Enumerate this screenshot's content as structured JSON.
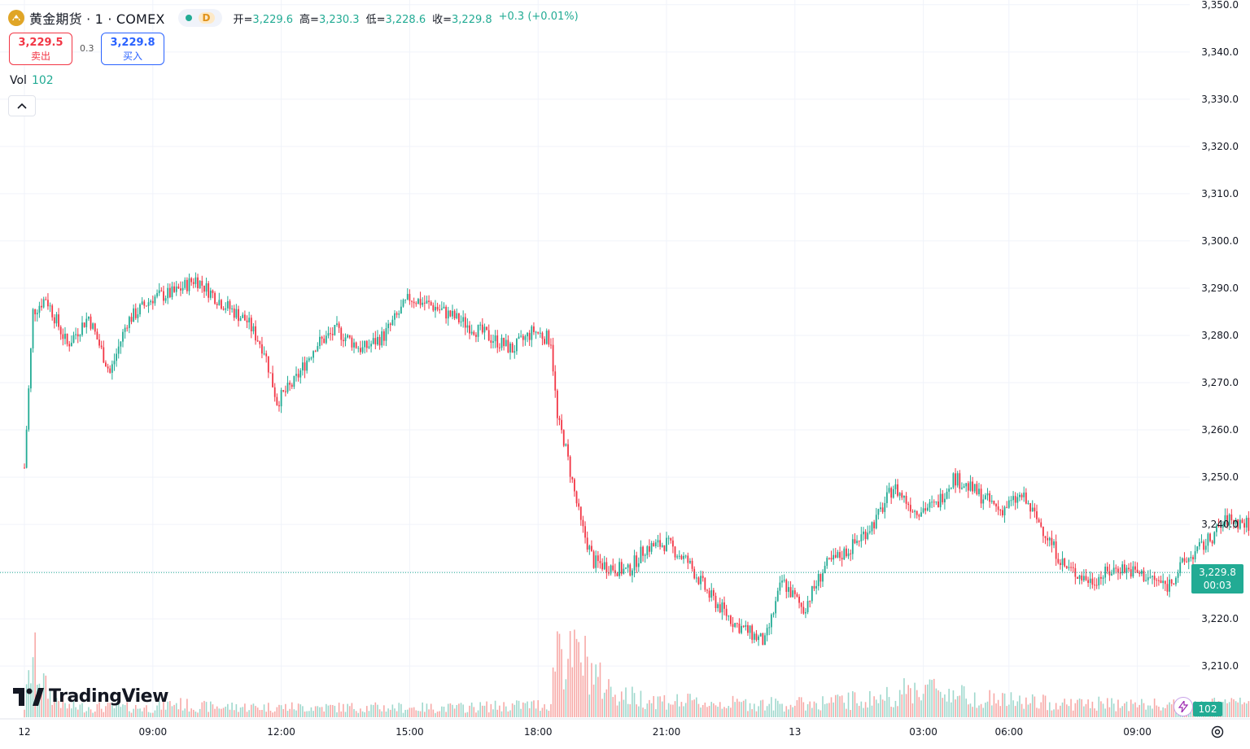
{
  "header": {
    "title": "黄金期货 · 1 · COMEX",
    "interval_badge": "D",
    "ohlc": {
      "open_label": "开=",
      "open": "3,229.6",
      "high_label": "高=",
      "high": "3,230.3",
      "low_label": "低=",
      "low": "3,228.6",
      "close_label": "收=",
      "close": "3,229.8",
      "change": "+0.3 (+0.01%)"
    }
  },
  "trade": {
    "sell_price": "3,229.5",
    "sell_label": "卖出",
    "spread": "0.3",
    "buy_price": "3,229.8",
    "buy_label": "买入"
  },
  "volume_legend": {
    "label": "Vol",
    "value": "102"
  },
  "last_price": {
    "price": "3,229.8",
    "countdown": "00:03"
  },
  "volume_label": "102",
  "logo_text": "TradingView",
  "colors": {
    "up": "#22ab94",
    "down": "#f23645",
    "up_vol": "#9fd8cd",
    "down_vol": "#f7a9a7",
    "grid": "#f0f3fa",
    "accent": "#2962ff"
  },
  "icons": [
    "gold-coin-icon",
    "chevron-up-icon",
    "bolt-icon",
    "gear-icon",
    "tradingview-logo-icon"
  ],
  "chart_data": {
    "type": "candlestick",
    "y_axis_ticks": [
      "3,210.0",
      "3,220.0",
      "3,230.0",
      "3,240.0",
      "3,250.0",
      "3,260.0",
      "3,270.0",
      "3,280.0",
      "3,290.0",
      "3,300.0",
      "3,310.0",
      "3,320.0",
      "3,330.0",
      "3,340.0",
      "3,350.0"
    ],
    "y_tick_values": [
      3210,
      3220,
      3230,
      3240,
      3250,
      3260,
      3270,
      3280,
      3290,
      3300,
      3310,
      3320,
      3330,
      3340,
      3350
    ],
    "ylim": [
      3199,
      3351
    ],
    "x_axis_ticks": [
      "12",
      "09:00",
      "12:00",
      "15:00",
      "18:00",
      "21:00",
      "13",
      "03:00",
      "06:00",
      "09:00"
    ],
    "price_path": [
      [
        0.0,
        3252
      ],
      [
        0.2,
        3285
      ],
      [
        0.5,
        3288
      ],
      [
        1.0,
        3278
      ],
      [
        1.5,
        3284
      ],
      [
        2.0,
        3272
      ],
      [
        2.4,
        3283
      ],
      [
        3.0,
        3288
      ],
      [
        3.5,
        3289
      ],
      [
        4.0,
        3292
      ],
      [
        4.6,
        3287
      ],
      [
        5.2,
        3283
      ],
      [
        5.6,
        3277
      ],
      [
        5.9,
        3266
      ],
      [
        6.3,
        3270
      ],
      [
        6.8,
        3278
      ],
      [
        7.3,
        3281
      ],
      [
        7.9,
        3277
      ],
      [
        8.4,
        3280
      ],
      [
        9.0,
        3288
      ],
      [
        9.6,
        3286
      ],
      [
        10.2,
        3283
      ],
      [
        10.8,
        3280
      ],
      [
        11.4,
        3277
      ],
      [
        11.9,
        3281
      ],
      [
        12.3,
        3279
      ],
      [
        12.45,
        3262
      ],
      [
        12.6,
        3258
      ],
      [
        13.0,
        3240
      ],
      [
        13.3,
        3232
      ],
      [
        13.7,
        3231
      ],
      [
        14.1,
        3230
      ],
      [
        14.5,
        3235
      ],
      [
        15.0,
        3236
      ],
      [
        15.5,
        3232
      ],
      [
        16.0,
        3225
      ],
      [
        16.6,
        3219
      ],
      [
        17.3,
        3215
      ],
      [
        17.7,
        3228
      ],
      [
        18.2,
        3222
      ],
      [
        18.7,
        3231
      ],
      [
        19.3,
        3235
      ],
      [
        19.9,
        3241
      ],
      [
        20.3,
        3248
      ],
      [
        20.8,
        3243
      ],
      [
        21.3,
        3244
      ],
      [
        21.7,
        3250
      ],
      [
        22.2,
        3247
      ],
      [
        22.8,
        3243
      ],
      [
        23.3,
        3246
      ],
      [
        23.8,
        3239
      ],
      [
        24.3,
        3231
      ],
      [
        24.9,
        3228
      ],
      [
        25.6,
        3231
      ],
      [
        26.2,
        3229
      ],
      [
        26.7,
        3227
      ],
      [
        27.1,
        3232
      ],
      [
        27.6,
        3236
      ],
      [
        28.1,
        3241
      ],
      [
        28.6,
        3240
      ],
      [
        29.1,
        3238
      ],
      [
        29.6,
        3240
      ],
      [
        30.0,
        3239
      ],
      [
        30.5,
        3240
      ],
      [
        31.0,
        3238
      ],
      [
        31.6,
        3236
      ],
      [
        32.1,
        3239
      ],
      [
        32.5,
        3240
      ],
      [
        33.0,
        3243
      ],
      [
        33.4,
        3245
      ],
      [
        33.7,
        3241
      ],
      [
        34.2,
        3240
      ],
      [
        34.6,
        3244
      ],
      [
        35.0,
        3238
      ],
      [
        35.4,
        3225
      ],
      [
        35.8,
        3229.8
      ]
    ],
    "last_price": 3229.8,
    "volume_last": 102,
    "volume_shape": [
      [
        0.0,
        45
      ],
      [
        0.2,
        260
      ],
      [
        0.5,
        120
      ],
      [
        1.0,
        45
      ],
      [
        3.0,
        40
      ],
      [
        3.5,
        60
      ],
      [
        4.0,
        45
      ],
      [
        10.0,
        40
      ],
      [
        12.3,
        55
      ],
      [
        12.45,
        380
      ],
      [
        12.6,
        240
      ],
      [
        13.0,
        260
      ],
      [
        13.5,
        140
      ],
      [
        14.0,
        90
      ],
      [
        15.0,
        70
      ],
      [
        16.0,
        60
      ],
      [
        18.0,
        55
      ],
      [
        20.0,
        80
      ],
      [
        21.0,
        130
      ],
      [
        22.0,
        90
      ],
      [
        23.0,
        70
      ],
      [
        24.0,
        60
      ],
      [
        27.0,
        50
      ],
      [
        30.0,
        70
      ],
      [
        33.0,
        80
      ],
      [
        34.0,
        70
      ],
      [
        35.0,
        140
      ],
      [
        35.8,
        102
      ]
    ]
  }
}
